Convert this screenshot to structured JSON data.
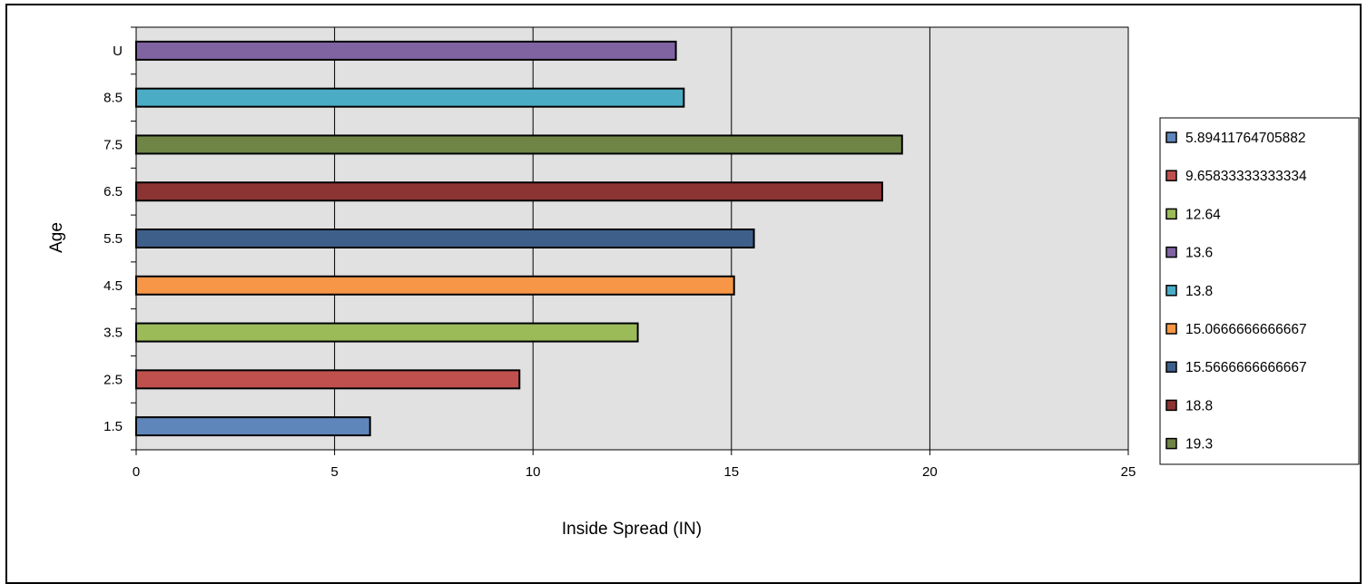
{
  "chart_data": {
    "type": "bar",
    "orientation": "horizontal",
    "categories": [
      "1.5",
      "2.5",
      "3.5",
      "4.5",
      "5.5",
      "6.5",
      "7.5",
      "8.5",
      "U"
    ],
    "values": [
      5.89411764705882,
      9.65833333333334,
      12.64,
      15.0666666666667,
      15.5666666666667,
      18.8,
      19.3,
      13.8,
      13.6
    ],
    "colors": [
      "#5f86bb",
      "#c0504d",
      "#9bbb59",
      "#f79646",
      "#3e5f8a",
      "#8b3433",
      "#6f8546",
      "#4bacc6",
      "#8064a2"
    ],
    "xlabel": "Inside Spread (IN)",
    "ylabel": "Age",
    "xlim": [
      0,
      25
    ],
    "xticks": [
      0,
      5,
      10,
      15,
      20,
      25
    ],
    "grid": true,
    "plot_background": "#e1e1e1",
    "legend": {
      "placement": "right",
      "entries": [
        {
          "label": "5.89411764705882",
          "color": "#5f86bb"
        },
        {
          "label": "9.65833333333334",
          "color": "#c0504d"
        },
        {
          "label": "12.64",
          "color": "#9bbb59"
        },
        {
          "label": "13.6",
          "color": "#8064a2"
        },
        {
          "label": "13.8",
          "color": "#4bacc6"
        },
        {
          "label": "15.0666666666667",
          "color": "#f79646"
        },
        {
          "label": "15.5666666666667",
          "color": "#3e5f8a"
        },
        {
          "label": "18.8",
          "color": "#8b3433"
        },
        {
          "label": "19.3",
          "color": "#6f8546"
        }
      ]
    }
  }
}
